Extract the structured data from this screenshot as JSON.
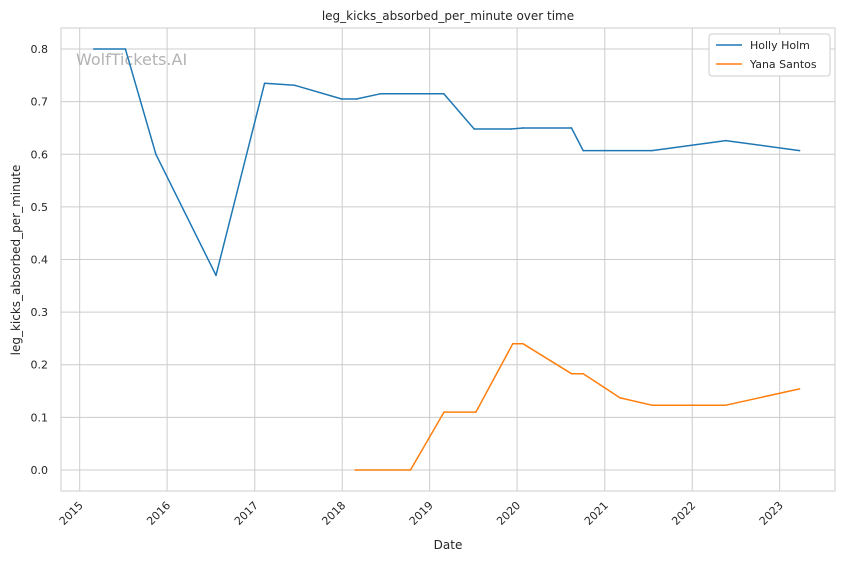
{
  "chart_data": {
    "type": "line",
    "title": "leg_kicks_absorbed_per_minute over time",
    "xlabel": "Date",
    "ylabel": "leg_kicks_absorbed_per_minute",
    "watermark": "WolfTickets.AI",
    "xlim": [
      "2014-10-15",
      "2023-08-20"
    ],
    "ylim": [
      -0.04,
      0.84
    ],
    "x_ticks": [
      "2015",
      "2016",
      "2017",
      "2018",
      "2019",
      "2020",
      "2021",
      "2022",
      "2023"
    ],
    "y_ticks": [
      "0.0",
      "0.1",
      "0.2",
      "0.3",
      "0.4",
      "0.5",
      "0.6",
      "0.7",
      "0.8"
    ],
    "grid": true,
    "legend_position": "top-right",
    "series": [
      {
        "name": "Holly Holm",
        "color": "#1f77b4",
        "points": [
          {
            "x": "2015-03-01",
            "y": 0.8
          },
          {
            "x": "2015-07-11",
            "y": 0.8
          },
          {
            "x": "2015-11-15",
            "y": 0.6
          },
          {
            "x": "2016-07-23",
            "y": 0.37
          },
          {
            "x": "2017-02-11",
            "y": 0.735
          },
          {
            "x": "2017-06-17",
            "y": 0.731
          },
          {
            "x": "2017-12-30",
            "y": 0.705
          },
          {
            "x": "2018-03-01",
            "y": 0.705
          },
          {
            "x": "2018-06-09",
            "y": 0.715
          },
          {
            "x": "2019-03-01",
            "y": 0.715
          },
          {
            "x": "2019-07-06",
            "y": 0.648
          },
          {
            "x": "2019-12-07",
            "y": 0.648
          },
          {
            "x": "2020-01-25",
            "y": 0.65
          },
          {
            "x": "2020-08-15",
            "y": 0.65
          },
          {
            "x": "2020-10-03",
            "y": 0.607
          },
          {
            "x": "2021-07-17",
            "y": 0.607
          },
          {
            "x": "2022-05-21",
            "y": 0.626
          },
          {
            "x": "2023-03-25",
            "y": 0.607
          }
        ]
      },
      {
        "name": "Yana Santos",
        "color": "#ff7f0e",
        "points": [
          {
            "x": "2018-02-24",
            "y": 0.0
          },
          {
            "x": "2018-10-13",
            "y": 0.0
          },
          {
            "x": "2019-03-02",
            "y": 0.11
          },
          {
            "x": "2019-07-13",
            "y": 0.11
          },
          {
            "x": "2019-12-14",
            "y": 0.24
          },
          {
            "x": "2020-01-25",
            "y": 0.24
          },
          {
            "x": "2020-08-15",
            "y": 0.183
          },
          {
            "x": "2020-10-03",
            "y": 0.183
          },
          {
            "x": "2021-03-06",
            "y": 0.137
          },
          {
            "x": "2021-07-17",
            "y": 0.123
          },
          {
            "x": "2022-05-21",
            "y": 0.123
          },
          {
            "x": "2023-03-25",
            "y": 0.154
          }
        ]
      }
    ]
  }
}
